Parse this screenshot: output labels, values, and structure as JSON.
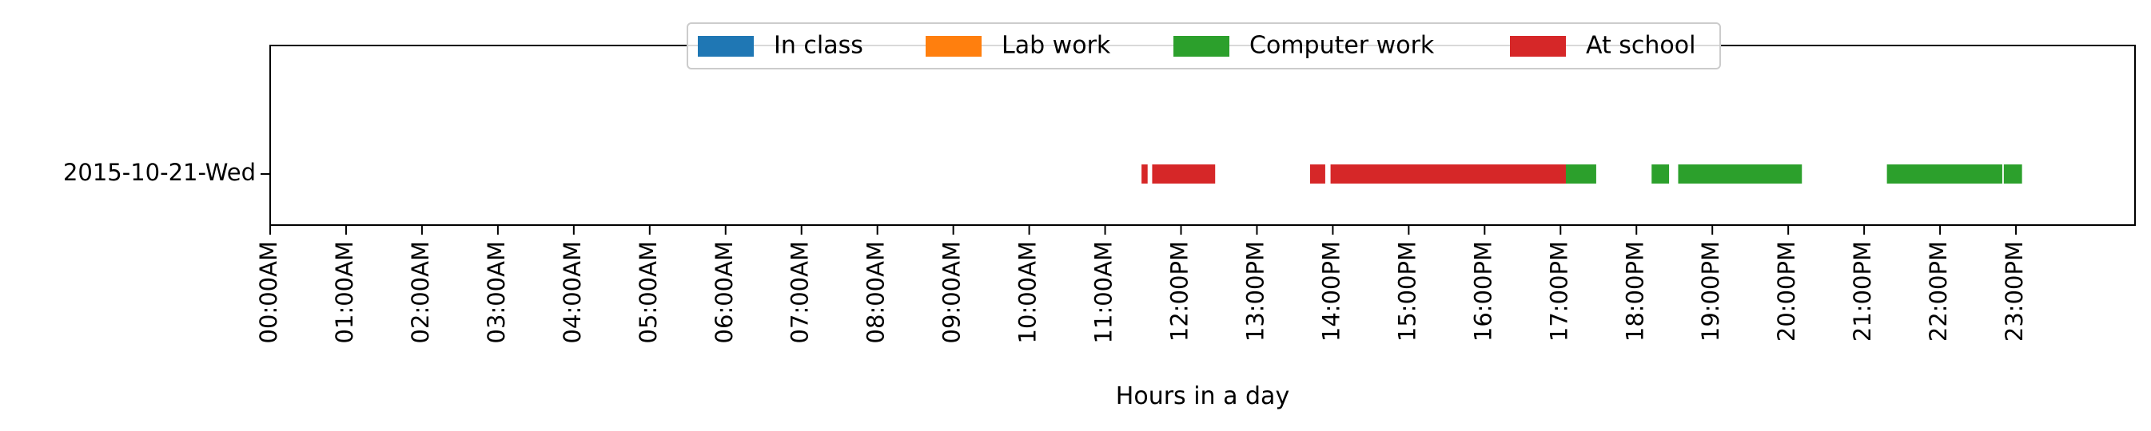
{
  "chart_data": {
    "type": "bar",
    "orientation": "horizontal",
    "category_label": "2015-10-21-Wed",
    "xlabel": "Hours in a day",
    "xlim": [
      0,
      24
    ],
    "x_unit": "hour",
    "grid": false,
    "legend_position": "top-center",
    "xtick_labels": [
      "00:00AM",
      "01:00AM",
      "02:00AM",
      "03:00AM",
      "04:00AM",
      "05:00AM",
      "06:00AM",
      "07:00AM",
      "08:00AM",
      "09:00AM",
      "10:00AM",
      "11:00AM",
      "12:00PM",
      "13:00PM",
      "14:00PM",
      "15:00PM",
      "16:00PM",
      "17:00PM",
      "18:00PM",
      "19:00PM",
      "20:00PM",
      "21:00PM",
      "22:00PM",
      "23:00PM"
    ],
    "series": [
      {
        "name": "In class",
        "color": "#1f77b4",
        "intervals": []
      },
      {
        "name": "Lab work",
        "color": "#ff7f0e",
        "intervals": []
      },
      {
        "name": "Computer work",
        "color": "#2ca02c",
        "intervals": [
          [
            17.0,
            17.47
          ],
          [
            18.2,
            18.43
          ],
          [
            18.55,
            20.18
          ],
          [
            21.3,
            22.82
          ],
          [
            22.84,
            23.08
          ]
        ]
      },
      {
        "name": "At school",
        "color": "#d62728",
        "intervals": [
          [
            11.48,
            11.56
          ],
          [
            11.62,
            12.45
          ],
          [
            13.7,
            13.9
          ],
          [
            13.97,
            17.07
          ]
        ]
      }
    ]
  }
}
